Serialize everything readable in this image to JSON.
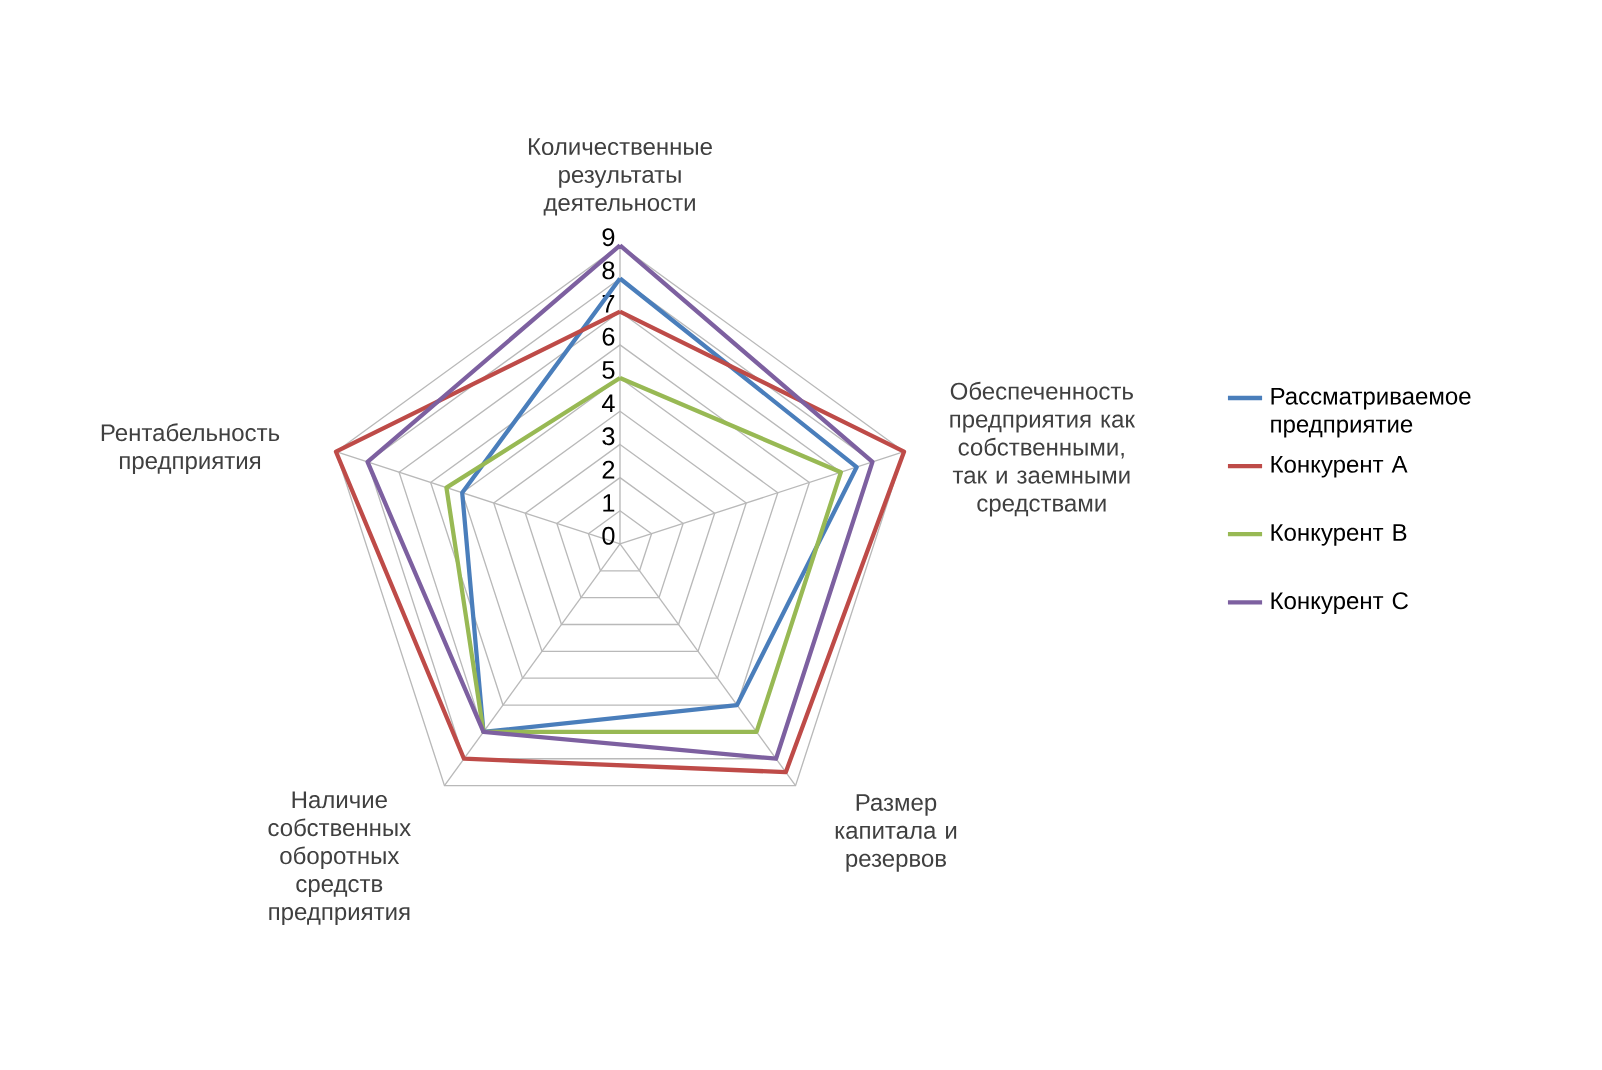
{
  "chart_data": {
    "type": "radar",
    "categories": [
      "Количественные результаты деятельности",
      "Обеспеченность предприятия как собственными, так и заемными средствами",
      "Размер капитала и резервов",
      "Наличие собственных оборотных средств предприятия",
      "Рентабельность предприятия"
    ],
    "series": [
      {
        "name": "Рассматриваемое предприятие",
        "color": "#4a7ebb",
        "values": [
          8,
          7.5,
          6,
          7,
          5
        ]
      },
      {
        "name": "Конкурент А",
        "color": "#be4b48",
        "values": [
          7,
          9,
          8.5,
          8,
          9
        ]
      },
      {
        "name": "Конкурент В",
        "color": "#98b954",
        "values": [
          5,
          7,
          7,
          7,
          5.5
        ]
      },
      {
        "name": "Конкурент С",
        "color": "#7d60a0",
        "values": [
          9,
          8,
          8,
          7,
          8
        ]
      }
    ],
    "ylim": [
      0,
      9
    ],
    "yticks": [
      0,
      1,
      2,
      3,
      4,
      5,
      6,
      7,
      8,
      9
    ],
    "grid": true,
    "legend": "right",
    "marker": "none"
  }
}
